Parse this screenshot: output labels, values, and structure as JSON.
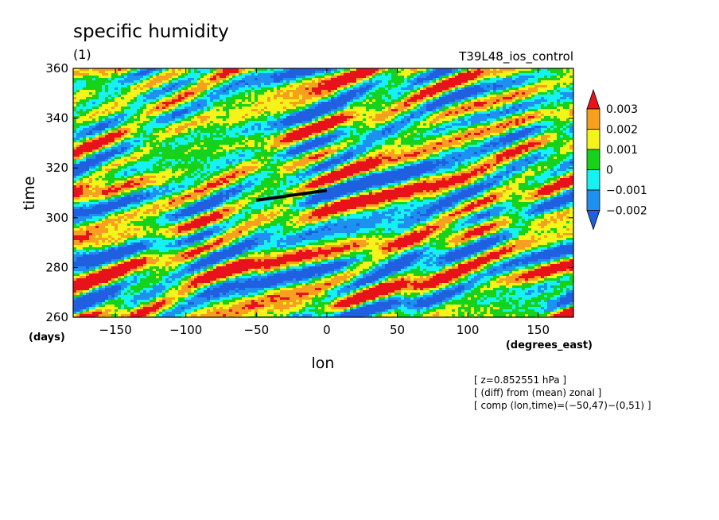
{
  "chart_data": {
    "type": "heatmap",
    "title": "specific humidity",
    "subtitle": "(1)",
    "run_label": "T39L48_ios_control",
    "xlabel": "lon",
    "ylabel": "time",
    "x_unit": "(degrees_east)",
    "y_unit": "(days)",
    "xlim": [
      -180,
      175
    ],
    "ylim": [
      260,
      360
    ],
    "x_ticks": [
      -150,
      -100,
      -50,
      0,
      50,
      100,
      150
    ],
    "x_tick_labels": [
      "−150",
      "−100",
      "−50",
      "0",
      "50",
      "100",
      "150"
    ],
    "y_ticks": [
      260,
      280,
      300,
      320,
      340,
      360
    ],
    "y_tick_labels": [
      "260",
      "280",
      "300",
      "320",
      "340",
      "360"
    ],
    "colorbar": {
      "levels": [
        0.003,
        0.002,
        0.001,
        0,
        -0.001,
        -0.002
      ],
      "labels": [
        "0.003",
        "0.002",
        "0.001",
        "0",
        "−0.001",
        "−0.002"
      ],
      "colors": [
        "#e8131a",
        "#f7a01f",
        "#f4f41a",
        "#16d21a",
        "#16f2f2",
        "#1e90f0",
        "#2060e0"
      ]
    },
    "composite_line": {
      "from": [
        -50,
        47
      ],
      "to": [
        0,
        51
      ],
      "color": "#000000"
    },
    "annotations": [
      "[ z=0.852551 hPa ]",
      "[ (diff) from (mean) zonal ]",
      "[ comp (lon,time)=(−50,47)−(0,51) ]"
    ]
  }
}
